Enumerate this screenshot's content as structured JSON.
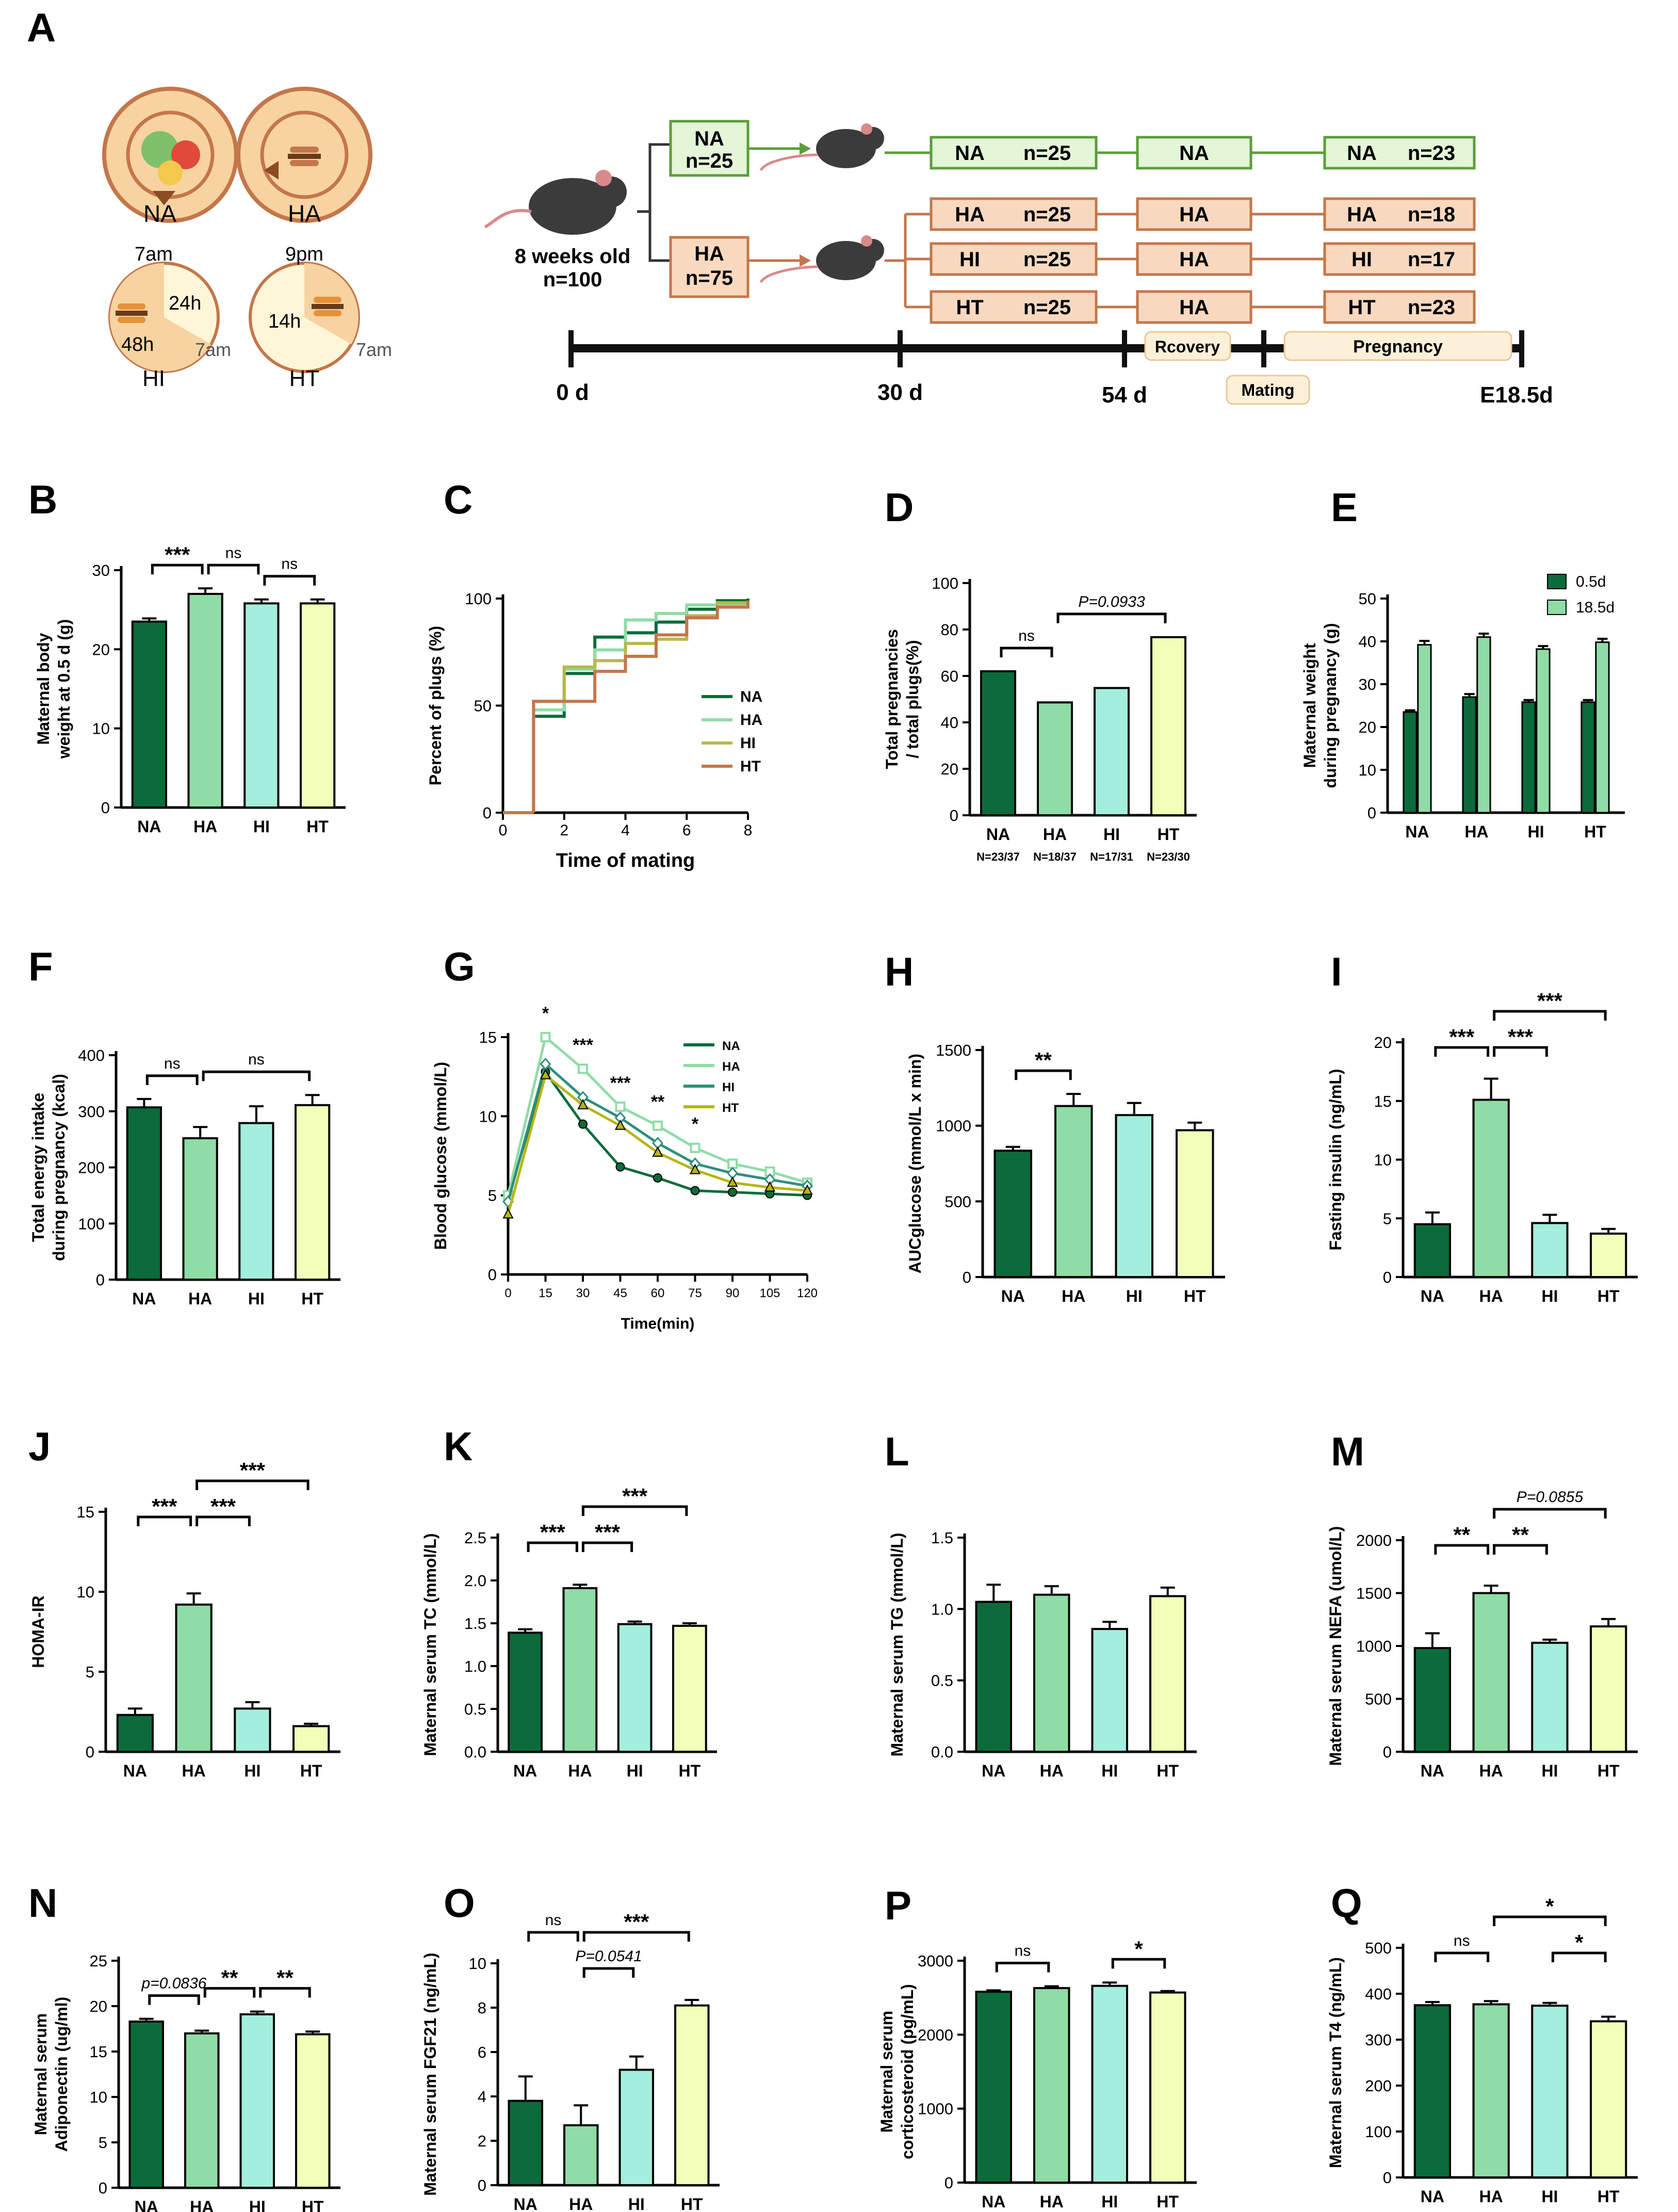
{
  "figure": {
    "colors": {
      "NA": "#0b6b3a",
      "HA": "#8fdca6",
      "HI": "#a3eedc",
      "HT": "#f2ffb8",
      "brown": "#c4764a",
      "green_edge": "#5a9e3a"
    },
    "panel_A": {
      "letter": "A",
      "icons": [
        {
          "label": "NA"
        },
        {
          "label": "HA"
        },
        {
          "label": "HI",
          "t1": "7am",
          "t2": "24h",
          "t3": "48h",
          "t4": "7am"
        },
        {
          "label": "HT",
          "t1": "9pm",
          "t2": "14h",
          "t3": "7am"
        }
      ],
      "start": {
        "line1": "8 weeks old",
        "line2": "n=100"
      },
      "branch_NA": {
        "line1": "NA",
        "line2": "n=25"
      },
      "branch_HA": {
        "line1": "HA",
        "line2": "n=75"
      },
      "rows": [
        {
          "group": "NA",
          "n1": "n=25",
          "mid": "NA",
          "n2": "n=23",
          "tone": "green"
        },
        {
          "group": "HA",
          "n1": "n=25",
          "mid": "HA",
          "n2": "n=18",
          "tone": "brown"
        },
        {
          "group": "HI",
          "n1": "n=25",
          "mid": "HA",
          "n2": "n=17",
          "tone": "brown"
        },
        {
          "group": "HT",
          "n1": "n=25",
          "mid": "HA",
          "n2": "n=23",
          "tone": "brown"
        }
      ],
      "timeline": {
        "t0": "0 d",
        "t1": "30 d",
        "t2": "54 d",
        "t3": "E18.5d",
        "recovery": "Rcovery",
        "mating": "Mating",
        "pregnancy": "Pregnancy"
      }
    }
  },
  "chart_data": [
    {
      "id": "B",
      "letter": "B",
      "type": "bar",
      "ylabel": "Maternal body weight at 0.5 d (g)",
      "ylim": [
        0,
        30
      ],
      "yticks": [
        0,
        10,
        20,
        30
      ],
      "categories": [
        "NA",
        "HA",
        "HI",
        "HT"
      ],
      "values": [
        23.5,
        27.0,
        25.8,
        25.8
      ],
      "errors": [
        0.4,
        0.7,
        0.5,
        0.5
      ],
      "sig": [
        {
          "from": 0,
          "to": 1,
          "label": "***",
          "level": 0
        },
        {
          "from": 1,
          "to": 2,
          "label": "ns",
          "level": 0
        },
        {
          "from": 2,
          "to": 3,
          "label": "ns",
          "level": 0
        }
      ]
    },
    {
      "id": "C",
      "letter": "C",
      "type": "line",
      "xlabel": "Time of mating",
      "ylabel": "Percent of plugs (%)",
      "xlim": [
        0,
        8
      ],
      "ylim": [
        0,
        100
      ],
      "xticks": [
        0,
        2,
        4,
        6,
        8
      ],
      "yticks": [
        0,
        50,
        100
      ],
      "series": [
        {
          "name": "NA",
          "color": "#0b6b3a",
          "x": [
            1,
            2,
            3,
            4,
            5,
            6,
            7,
            8
          ],
          "y": [
            45,
            65,
            82,
            84,
            89,
            95,
            99,
            100
          ]
        },
        {
          "name": "HA",
          "color": "#8fdca6",
          "x": [
            1,
            2,
            3,
            4,
            5,
            6,
            7,
            8
          ],
          "y": [
            48,
            67,
            76,
            90,
            93,
            97,
            97,
            98
          ]
        },
        {
          "name": "HI",
          "color": "#b8b84a",
          "x": [
            1,
            2,
            3,
            4,
            5,
            6,
            7,
            8
          ],
          "y": [
            52,
            68,
            71,
            79,
            81,
            92,
            98,
            98
          ]
        },
        {
          "name": "HT",
          "color": "#c4764a",
          "x": [
            1,
            2,
            3,
            4,
            5,
            6,
            7,
            8
          ],
          "y": [
            52,
            52,
            66,
            73,
            83,
            91,
            96,
            99
          ]
        }
      ]
    },
    {
      "id": "D",
      "letter": "D",
      "type": "bar",
      "ylabel": "Total pregnancies / total plugs(%)",
      "ylim": [
        0,
        100
      ],
      "yticks": [
        0,
        20,
        40,
        60,
        80,
        100
      ],
      "categories": [
        "NA",
        "HA",
        "HI",
        "HT"
      ],
      "values": [
        62,
        48.6,
        54.8,
        76.7
      ],
      "sublabels": [
        "N=23/37",
        "N=18/37",
        "N=17/31",
        "N=23/30"
      ],
      "sig": [
        {
          "from": 0,
          "to": 1,
          "label": "ns",
          "level": 0
        },
        {
          "from": 1,
          "to": 3,
          "label": "P=0.0933",
          "level": 0
        }
      ]
    },
    {
      "id": "E",
      "letter": "E",
      "type": "bar",
      "ylabel": "Maternal weight during pregnancy (g)",
      "ylim": [
        0,
        50
      ],
      "yticks": [
        0,
        10,
        20,
        30,
        40,
        50
      ],
      "categories": [
        "NA",
        "HA",
        "HI",
        "HT"
      ],
      "series": [
        {
          "name": "0.5d",
          "color": "#0b6b3a",
          "values": [
            23.5,
            27.0,
            25.8,
            25.8
          ],
          "errors": [
            0.4,
            0.7,
            0.5,
            0.5
          ]
        },
        {
          "name": "18.5d",
          "color": "#8fdca6",
          "values": [
            39.2,
            41.0,
            38.2,
            39.8
          ],
          "errors": [
            0.9,
            0.8,
            0.7,
            0.8
          ]
        }
      ]
    },
    {
      "id": "F",
      "letter": "F",
      "type": "bar",
      "ylabel": "Total energy intake during pregnancy (kcal)",
      "ylim": [
        0,
        400
      ],
      "yticks": [
        0,
        100,
        200,
        300,
        400
      ],
      "categories": [
        "NA",
        "HA",
        "HI",
        "HT"
      ],
      "values": [
        307,
        252,
        279,
        311
      ],
      "errors": [
        15,
        20,
        30,
        18
      ],
      "sig": [
        {
          "from": 0,
          "to": 1,
          "label": "ns",
          "level": 0
        },
        {
          "from": 1,
          "to": 3,
          "label": "ns",
          "level": 0
        }
      ]
    },
    {
      "id": "G",
      "letter": "G",
      "type": "line",
      "xlabel": "Time(min)",
      "ylabel": "Blood glucose  (mmol/L)",
      "xlim": [
        0,
        120
      ],
      "ylim": [
        0,
        15
      ],
      "xticks": [
        0,
        15,
        30,
        45,
        60,
        75,
        90,
        105,
        120
      ],
      "yticks": [
        0,
        5,
        10,
        15
      ],
      "series": [
        {
          "name": "NA",
          "color": "#0b6b3a",
          "x": [
            0,
            15,
            30,
            45,
            60,
            75,
            90,
            105,
            120
          ],
          "y": [
            4.8,
            12.8,
            9.5,
            6.8,
            6.1,
            5.3,
            5.2,
            5.1,
            5.0
          ]
        },
        {
          "name": "HA",
          "color": "#8fdca6",
          "x": [
            0,
            15,
            30,
            45,
            60,
            75,
            90,
            105,
            120
          ],
          "y": [
            5.0,
            15.0,
            13.0,
            10.6,
            9.4,
            8.0,
            7.0,
            6.5,
            5.8
          ]
        },
        {
          "name": "HI",
          "color": "#2e8f7a",
          "x": [
            0,
            15,
            30,
            45,
            60,
            75,
            90,
            105,
            120
          ],
          "y": [
            4.6,
            13.3,
            11.2,
            9.9,
            8.3,
            7.0,
            6.4,
            6.0,
            5.6
          ]
        },
        {
          "name": "HT",
          "color": "#b5b514",
          "x": [
            0,
            15,
            30,
            45,
            60,
            75,
            90,
            105,
            120
          ],
          "y": [
            3.8,
            12.6,
            10.7,
            9.4,
            7.7,
            6.6,
            5.8,
            5.5,
            5.3
          ]
        }
      ],
      "stars": [
        {
          "x": 15,
          "label": "*"
        },
        {
          "x": 30,
          "label": "***"
        },
        {
          "x": 45,
          "label": "***"
        },
        {
          "x": 60,
          "label": "**"
        },
        {
          "x": 75,
          "label": "*"
        }
      ]
    },
    {
      "id": "H",
      "letter": "H",
      "type": "bar",
      "ylabel": "AUCglucose  (mmol/L x min)",
      "ylim": [
        0,
        1500
      ],
      "yticks": [
        0,
        500,
        1000,
        1500
      ],
      "categories": [
        "NA",
        "HA",
        "HI",
        "HT"
      ],
      "values": [
        835,
        1130,
        1070,
        970
      ],
      "errors": [
        25,
        80,
        80,
        50
      ],
      "sig": [
        {
          "from": 0,
          "to": 1,
          "label": "**",
          "level": 0
        }
      ]
    },
    {
      "id": "I",
      "letter": "I",
      "type": "bar",
      "ylabel": "Fasting insulin (ng/mL)",
      "ylim": [
        0,
        20
      ],
      "yticks": [
        0,
        5,
        10,
        15,
        20
      ],
      "categories": [
        "NA",
        "HA",
        "HI",
        "HT"
      ],
      "values": [
        4.5,
        15.1,
        4.6,
        3.7
      ],
      "errors": [
        1.0,
        1.8,
        0.7,
        0.4
      ],
      "sig": [
        {
          "from": 0,
          "to": 1,
          "label": "***",
          "level": 0
        },
        {
          "from": 1,
          "to": 2,
          "label": "***",
          "level": 0
        },
        {
          "from": 1,
          "to": 3,
          "label": "***",
          "level": 1
        }
      ]
    },
    {
      "id": "J",
      "letter": "J",
      "type": "bar",
      "ylabel": "HOMA-IR",
      "ylim": [
        0,
        15
      ],
      "yticks": [
        0,
        5,
        10,
        15
      ],
      "categories": [
        "NA",
        "HA",
        "HI",
        "HT"
      ],
      "values": [
        2.3,
        9.2,
        2.7,
        1.6
      ],
      "errors": [
        0.4,
        0.7,
        0.4,
        0.15
      ],
      "sig": [
        {
          "from": 0,
          "to": 1,
          "label": "***",
          "level": 0
        },
        {
          "from": 1,
          "to": 2,
          "label": "***",
          "level": 0
        },
        {
          "from": 1,
          "to": 3,
          "label": "***",
          "level": 1
        }
      ]
    },
    {
      "id": "K",
      "letter": "K",
      "type": "bar",
      "ylabel": "Maternal serum TC (mmol/L)",
      "ylim": [
        0,
        2.5
      ],
      "yticks": [
        0,
        0.5,
        1.0,
        1.5,
        2.0,
        2.5
      ],
      "categories": [
        "NA",
        "HA",
        "HI",
        "HT"
      ],
      "values": [
        1.39,
        1.91,
        1.49,
        1.47
      ],
      "errors": [
        0.04,
        0.04,
        0.03,
        0.03
      ],
      "sig": [
        {
          "from": 0,
          "to": 1,
          "label": "***",
          "level": 0
        },
        {
          "from": 1,
          "to": 2,
          "label": "***",
          "level": 0
        },
        {
          "from": 1,
          "to": 3,
          "label": "***",
          "level": 1
        }
      ]
    },
    {
      "id": "L",
      "letter": "L",
      "type": "bar",
      "ylabel": "Maternal serum TG (mmol/L)",
      "ylim": [
        0,
        1.5
      ],
      "yticks": [
        0,
        0.5,
        1.0,
        1.5
      ],
      "categories": [
        "NA",
        "HA",
        "HI",
        "HT"
      ],
      "values": [
        1.05,
        1.1,
        0.86,
        1.09
      ],
      "errors": [
        0.12,
        0.06,
        0.05,
        0.06
      ],
      "sig": []
    },
    {
      "id": "M",
      "letter": "M",
      "type": "bar",
      "ylabel": "Maternal serum NEFA (umol/L)",
      "ylim": [
        0,
        2000
      ],
      "yticks": [
        0,
        500,
        1000,
        1500,
        2000
      ],
      "categories": [
        "NA",
        "HA",
        "HI",
        "HT"
      ],
      "values": [
        980,
        1500,
        1030,
        1185
      ],
      "errors": [
        140,
        70,
        30,
        70
      ],
      "sig": [
        {
          "from": 0,
          "to": 1,
          "label": "**",
          "level": 0
        },
        {
          "from": 1,
          "to": 2,
          "label": "**",
          "level": 0
        },
        {
          "from": 1,
          "to": 3,
          "label": "P=0.0855",
          "level": 1
        }
      ]
    },
    {
      "id": "N",
      "letter": "N",
      "type": "bar",
      "ylabel": "Maternal serum Adiponectin (ug/ml)",
      "ylim": [
        0,
        25
      ],
      "yticks": [
        0,
        5,
        10,
        15,
        20,
        25
      ],
      "categories": [
        "NA",
        "HA",
        "HI",
        "HT"
      ],
      "values": [
        18.3,
        17.0,
        19.1,
        16.9
      ],
      "errors": [
        0.3,
        0.3,
        0.3,
        0.3
      ],
      "sig": [
        {
          "from": 0,
          "to": 1,
          "label": "p=0.0836",
          "level": 0
        },
        {
          "from": 1,
          "to": 2,
          "label": "**",
          "level": 0
        },
        {
          "from": 2,
          "to": 3,
          "label": "**",
          "level": 0
        }
      ]
    },
    {
      "id": "O",
      "letter": "O",
      "type": "bar",
      "ylabel": "Maternal serum FGF21 (ng/mL)",
      "ylim": [
        0,
        10
      ],
      "yticks": [
        0,
        2,
        4,
        6,
        8,
        10
      ],
      "categories": [
        "NA",
        "HA",
        "HI",
        "HT"
      ],
      "values": [
        3.8,
        2.7,
        5.2,
        8.1
      ],
      "errors": [
        1.1,
        0.9,
        0.6,
        0.25
      ],
      "sig": [
        {
          "from": 0,
          "to": 1,
          "label": "ns",
          "level": 1
        },
        {
          "from": 1,
          "to": 3,
          "label": "***",
          "level": 1
        },
        {
          "from": 1,
          "to": 2,
          "label": "P=0.0541",
          "level": 0
        }
      ]
    },
    {
      "id": "P",
      "letter": "P",
      "type": "bar",
      "ylabel": "Maternal serum corticosteroid (pg/mL)",
      "ylim": [
        0,
        3000
      ],
      "yticks": [
        0,
        1000,
        2000,
        3000
      ],
      "categories": [
        "NA",
        "HA",
        "HI",
        "HT"
      ],
      "values": [
        2580,
        2630,
        2660,
        2570
      ],
      "errors": [
        20,
        25,
        45,
        20
      ],
      "sig": [
        {
          "from": 0,
          "to": 1,
          "label": "ns",
          "level": 0
        },
        {
          "from": 2,
          "to": 3,
          "label": "*",
          "level": 0
        }
      ]
    },
    {
      "id": "Q",
      "letter": "Q",
      "type": "bar",
      "ylabel": "Maternal serum T4 (ng/mL)",
      "ylim": [
        0,
        500
      ],
      "yticks": [
        0,
        100,
        200,
        300,
        400,
        500
      ],
      "categories": [
        "NA",
        "HA",
        "HI",
        "HT"
      ],
      "values": [
        375,
        377,
        374,
        340
      ],
      "errors": [
        7,
        7,
        6,
        10
      ],
      "sig": [
        {
          "from": 0,
          "to": 1,
          "label": "ns",
          "level": 0
        },
        {
          "from": 2,
          "to": 3,
          "label": "*",
          "level": 0
        },
        {
          "from": 1,
          "to": 3,
          "label": "*",
          "level": 1
        }
      ]
    }
  ]
}
